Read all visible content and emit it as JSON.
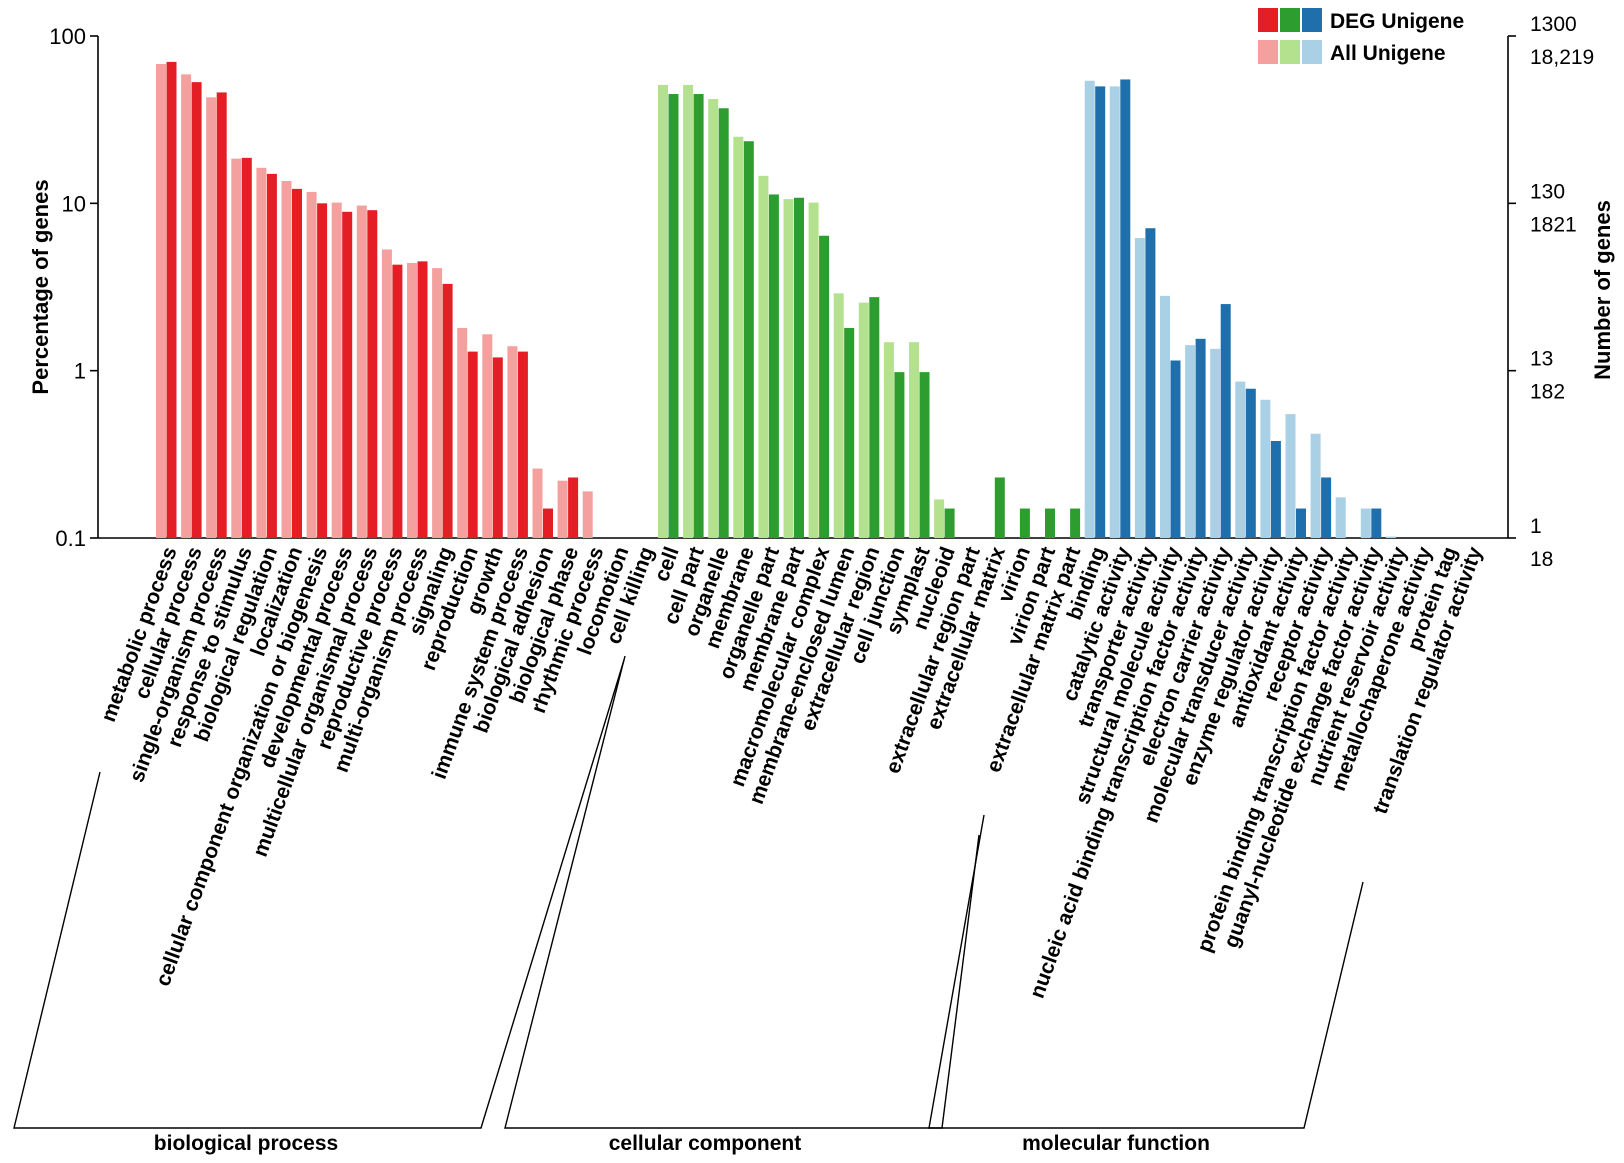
{
  "chart_data": {
    "type": "bar",
    "ylabel": "Percentage of genes",
    "ylabel_right": "Number of genes",
    "yscale": "log",
    "ylim": [
      0.1,
      100
    ],
    "yticks_left": [
      "100",
      "10",
      "1",
      "0.1"
    ],
    "yticks_right": [
      {
        "deg": "1300",
        "all": "18,219"
      },
      {
        "deg": "130",
        "all": "1821"
      },
      {
        "deg": "13",
        "all": "182"
      },
      {
        "deg": "1",
        "all": "18"
      }
    ],
    "legend": {
      "position": "top-right",
      "entries": [
        "DEG Unigene",
        "All Unigene"
      ]
    },
    "groups": [
      {
        "name": "biological process",
        "color_all": "#f4a09f",
        "color_deg": "#e31e25",
        "categories": [
          {
            "label": "metabolic process",
            "all": 68,
            "deg": 70
          },
          {
            "label": "cellular process",
            "all": 59,
            "deg": 53
          },
          {
            "label": "single-organism process",
            "all": 43,
            "deg": 46
          },
          {
            "label": "response to stimulus",
            "all": 18.5,
            "deg": 18.7
          },
          {
            "label": "biological regulation",
            "all": 16.3,
            "deg": 15
          },
          {
            "label": "localization",
            "all": 13.6,
            "deg": 12.2
          },
          {
            "label": "cellular component organization or biogenesis",
            "all": 11.7,
            "deg": 10
          },
          {
            "label": "developmental process",
            "all": 10.1,
            "deg": 8.9
          },
          {
            "label": "multicellular organismal process",
            "all": 9.7,
            "deg": 9.1
          },
          {
            "label": "reproductive process",
            "all": 5.3,
            "deg": 4.3
          },
          {
            "label": "multi-organism process",
            "all": 4.4,
            "deg": 4.5
          },
          {
            "label": "signaling",
            "all": 4.1,
            "deg": 3.3
          },
          {
            "label": "reproduction",
            "all": 1.8,
            "deg": 1.3
          },
          {
            "label": "growth",
            "all": 1.65,
            "deg": 1.2
          },
          {
            "label": "immune system process",
            "all": 1.4,
            "deg": 1.3
          },
          {
            "label": "biological adhesion",
            "all": 0.26,
            "deg": 0.15
          },
          {
            "label": "biological phase",
            "all": 0.22,
            "deg": 0.23
          },
          {
            "label": "rhythmic process",
            "all": 0.19,
            "deg": null
          },
          {
            "label": "locomotion",
            "all": null,
            "deg": null
          },
          {
            "label": "cell killing",
            "all": null,
            "deg": null
          }
        ]
      },
      {
        "name": "cellular component",
        "color_all": "#b4e18d",
        "color_deg": "#2e9d2f",
        "categories": [
          {
            "label": "cell",
            "all": 51,
            "deg": 45
          },
          {
            "label": "cell part",
            "all": 51,
            "deg": 45
          },
          {
            "label": "organelle",
            "all": 42,
            "deg": 37
          },
          {
            "label": "membrane",
            "all": 25,
            "deg": 23.5
          },
          {
            "label": "organelle part",
            "all": 14.6,
            "deg": 11.3
          },
          {
            "label": "membrane part",
            "all": 10.6,
            "deg": 10.8
          },
          {
            "label": "macromolecular complex",
            "all": 10.1,
            "deg": 6.4
          },
          {
            "label": "membrane-enclosed lumen",
            "all": 2.9,
            "deg": 1.8
          },
          {
            "label": "extracellular region",
            "all": 2.55,
            "deg": 2.75
          },
          {
            "label": "cell junction",
            "all": 1.48,
            "deg": 0.98
          },
          {
            "label": "symplast",
            "all": 1.48,
            "deg": 0.98
          },
          {
            "label": "nucleoid",
            "all": 0.17,
            "deg": 0.15
          },
          {
            "label": "extracellular region part",
            "all": null,
            "deg": null
          },
          {
            "label": "extracellular matrix",
            "all": null,
            "deg": 0.23
          },
          {
            "label": "virion",
            "all": null,
            "deg": 0.15
          },
          {
            "label": "virion part",
            "all": null,
            "deg": 0.15
          },
          {
            "label": "extracellular matrix part",
            "all": null,
            "deg": 0.15
          }
        ]
      },
      {
        "name": "molecular function",
        "color_all": "#a9d0e4",
        "color_deg": "#1f6fad",
        "categories": [
          {
            "label": "binding",
            "all": 54,
            "deg": 50
          },
          {
            "label": "catalytic activity",
            "all": 50,
            "deg": 55
          },
          {
            "label": "transporter activity",
            "all": 6.2,
            "deg": 7.1
          },
          {
            "label": "structural molecule activity",
            "all": 2.8,
            "deg": 1.15
          },
          {
            "label": "nucleic acid binding transcription factor activity",
            "all": 1.42,
            "deg": 1.55
          },
          {
            "label": "electron carrier activity",
            "all": 1.35,
            "deg": 2.5
          },
          {
            "label": "molecular transducer activity",
            "all": 0.86,
            "deg": 0.78
          },
          {
            "label": "enzyme regulator activity",
            "all": 0.67,
            "deg": 0.38
          },
          {
            "label": "antioxidant activity",
            "all": 0.55,
            "deg": 0.15
          },
          {
            "label": "receptor activity",
            "all": 0.42,
            "deg": 0.23
          },
          {
            "label": "protein binding transcription factor activity",
            "all": 0.175,
            "deg": null
          },
          {
            "label": "guanyl-nucleotide exchange factor activity",
            "all": 0.15,
            "deg": 0.15
          },
          {
            "label": "nutrient reservoir activity",
            "all": 0.102,
            "deg": null
          },
          {
            "label": "metallochaperone activity",
            "all": null,
            "deg": null
          },
          {
            "label": "protein tag",
            "all": null,
            "deg": null
          },
          {
            "label": "translation regulator activity",
            "all": null,
            "deg": null
          }
        ]
      }
    ]
  }
}
